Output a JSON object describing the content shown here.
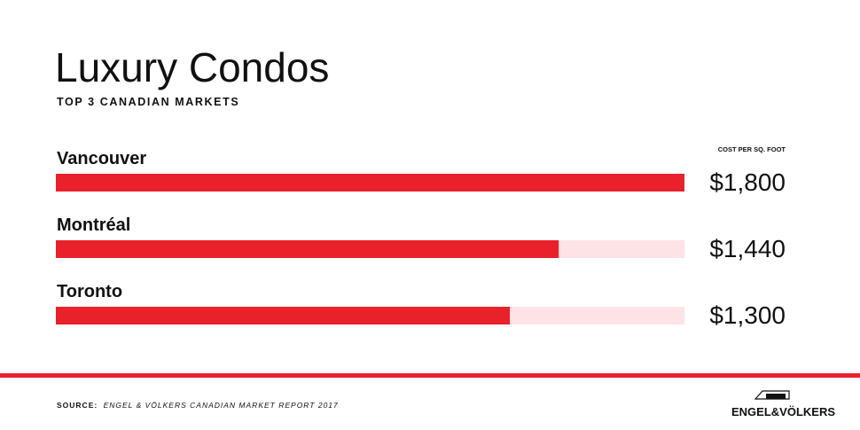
{
  "chart_data": {
    "type": "bar",
    "orientation": "horizontal",
    "title": "Luxury Condos",
    "subtitle": "TOP 3 CANADIAN MARKETS",
    "value_header": "COST PER SQ. FOOT",
    "categories": [
      "Vancouver",
      "Montréal",
      "Toronto"
    ],
    "values": [
      1800,
      1440,
      1300
    ],
    "value_labels": [
      "$1,800",
      "$1,440",
      "$1,300"
    ],
    "xlim": [
      0,
      1800
    ],
    "color": "#e8212b",
    "track_color": "#fde3e5",
    "source_label": "SOURCE:",
    "source": "ENGEL & VÖLKERS CANADIAN MARKET REPORT 2017",
    "brand": "ENGEL&VÖLKERS"
  }
}
